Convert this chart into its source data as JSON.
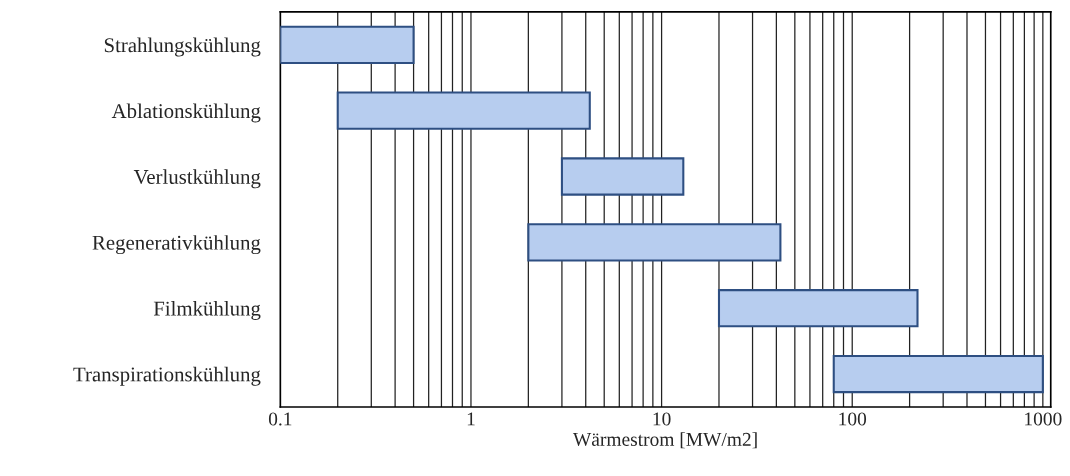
{
  "chart_data": {
    "type": "bar",
    "orientation": "horizontal",
    "log": "x",
    "xlabel": "Wärmestrom [MW/m2]",
    "categories": [
      "Strahlungskühlung",
      "Ablationskühlung",
      "Verlustkühlung",
      "Regenerativkühlung",
      "Filmkühlung",
      "Transpirationskühlung"
    ],
    "base": [
      0.1,
      0.2,
      3,
      2,
      20,
      80
    ],
    "values": [
      0.4,
      4.0,
      10,
      40,
      200,
      920
    ],
    "color": "#b7cdef",
    "xlim": [
      0.1,
      1100
    ],
    "xticks": [
      0.1,
      {
        "value": 0.2,
        "label": null
      },
      {
        "value": 0.3,
        "label": null
      },
      {
        "value": 0.4,
        "label": null
      },
      {
        "value": 0.5,
        "label": null
      },
      {
        "value": 0.6,
        "label": null
      },
      {
        "value": 0.7,
        "label": null
      },
      {
        "value": 0.8,
        "label": null
      },
      {
        "value": 0.9,
        "label": null
      },
      1,
      {
        "value": 2,
        "label": null
      },
      {
        "value": 3,
        "label": null
      },
      {
        "value": 4,
        "label": null
      },
      {
        "value": 5,
        "label": null
      },
      {
        "value": 6,
        "label": null
      },
      {
        "value": 7,
        "label": null
      },
      {
        "value": 8,
        "label": null
      },
      {
        "value": 9,
        "label": null
      },
      10,
      {
        "value": 20,
        "label": null
      },
      {
        "value": 30,
        "label": null
      },
      {
        "value": 40,
        "label": null
      },
      {
        "value": 50,
        "label": null
      },
      {
        "value": 60,
        "label": null
      },
      {
        "value": 70,
        "label": null
      },
      {
        "value": 80,
        "label": null
      },
      {
        "value": 90,
        "label": null
      },
      100,
      {
        "value": 200,
        "label": null
      },
      {
        "value": 300,
        "label": null
      },
      {
        "value": 400,
        "label": null
      },
      {
        "value": 500,
        "label": null
      },
      {
        "value": 600,
        "label": null
      },
      {
        "value": 700,
        "label": null
      },
      {
        "value": 800,
        "label": null
      },
      {
        "value": 900,
        "label": null
      },
      1000
    ],
    "grid": "x",
    "legend": false
  }
}
